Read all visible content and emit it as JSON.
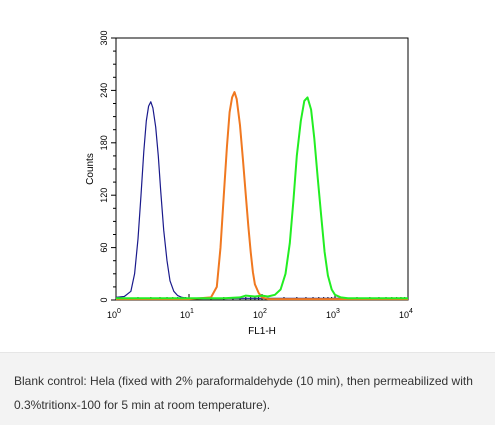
{
  "chart_data": {
    "type": "line",
    "title": "",
    "xlabel": "FL1-H",
    "ylabel": "Counts",
    "xscale": "log",
    "xlim": [
      1,
      10000
    ],
    "ylim": [
      0,
      300
    ],
    "grid": false,
    "x_ticks": [
      {
        "value": 1,
        "base": "10",
        "exp": "0"
      },
      {
        "value": 10,
        "base": "10",
        "exp": "1"
      },
      {
        "value": 100,
        "base": "10",
        "exp": "2"
      },
      {
        "value": 1000,
        "base": "10",
        "exp": "3"
      },
      {
        "value": 10000,
        "base": "10",
        "exp": "4"
      }
    ],
    "y_ticks": [
      {
        "value": 0,
        "label": "0"
      },
      {
        "value": 60,
        "label": "60"
      },
      {
        "value": 120,
        "label": "120"
      },
      {
        "value": 180,
        "label": "180"
      },
      {
        "value": 240,
        "label": "240"
      },
      {
        "value": 300,
        "label": "300"
      }
    ],
    "series": [
      {
        "color": "#1a1a8c",
        "x": [
          1,
          1.3,
          1.6,
          1.8,
          2.0,
          2.2,
          2.4,
          2.6,
          2.8,
          3.0,
          3.2,
          3.5,
          3.8,
          4.1,
          4.5,
          5.0,
          5.5,
          6.2,
          7.0,
          8.0,
          10,
          20,
          50,
          100,
          1000,
          10000
        ],
        "y": [
          3,
          4,
          10,
          30,
          70,
          120,
          170,
          205,
          222,
          227,
          220,
          198,
          165,
          125,
          80,
          45,
          22,
          10,
          5,
          3,
          2,
          2,
          2,
          2,
          2,
          2
        ]
      },
      {
        "color": "#f07820",
        "x": [
          1,
          10,
          20,
          24,
          27,
          30,
          33,
          36,
          39,
          42,
          45,
          50,
          55,
          60,
          65,
          70,
          75,
          80,
          90,
          100,
          120,
          1000,
          10000
        ],
        "y": [
          1,
          1,
          3,
          15,
          60,
          120,
          175,
          215,
          232,
          238,
          230,
          200,
          160,
          120,
          85,
          55,
          32,
          18,
          8,
          3,
          1,
          1,
          1
        ]
      },
      {
        "color": "#22ee22",
        "x": [
          1,
          10,
          30,
          50,
          60,
          80,
          100,
          120,
          150,
          180,
          210,
          240,
          270,
          300,
          340,
          380,
          420,
          470,
          520,
          580,
          650,
          720,
          800,
          900,
          1000,
          1200,
          1500,
          2000,
          10000
        ],
        "y": [
          2,
          2,
          2,
          3,
          5,
          4,
          5,
          4,
          6,
          12,
          30,
          65,
          115,
          165,
          205,
          228,
          232,
          218,
          185,
          140,
          95,
          55,
          28,
          12,
          6,
          3,
          2,
          2,
          2
        ]
      }
    ]
  },
  "caption": {
    "text": "Blank control: Hela (fixed with 2% paraformaldehyde (10 min), then permeabilized with 0.3%tritionx-100 for 5 min at room temperature)."
  }
}
